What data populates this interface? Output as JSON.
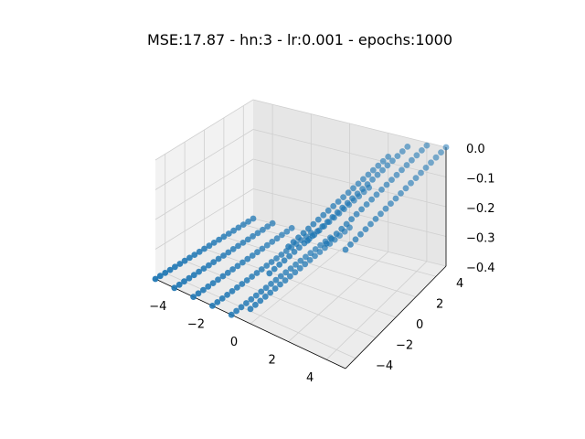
{
  "chart_data": {
    "type": "scatter",
    "projection": "3d",
    "title": "MSE:17.87 - hn:3 - lr:0.001 - epochs:1000",
    "xlabel": "",
    "ylabel": "",
    "zlabel": "",
    "xlim": [
      -5,
      5
    ],
    "ylim": [
      -5,
      5
    ],
    "zlim": [
      -0.4,
      0.0
    ],
    "x_ticks": [
      -4,
      -2,
      0,
      2,
      4
    ],
    "y_ticks": [
      -4,
      -2,
      0,
      2,
      4
    ],
    "z_ticks": [
      0.0,
      -0.1,
      -0.2,
      -0.3,
      -0.4
    ],
    "x_tick_labels": [
      "−4",
      "−2",
      "0",
      "2",
      "4"
    ],
    "y_tick_labels": [
      "−4",
      "−2",
      "0",
      "2",
      "4"
    ],
    "z_tick_labels": [
      "0.0",
      "−0.1",
      "−0.2",
      "−0.3",
      "−0.4"
    ],
    "grid": true,
    "marker_color": "#1f77b4",
    "x_grid": [
      -5,
      -4,
      -3,
      -2,
      -1,
      0,
      1,
      2,
      3,
      4,
      5
    ],
    "y_grid": [
      -5,
      -4.5,
      -4,
      -3.5,
      -3,
      -2.5,
      -2,
      -1.5,
      -1,
      -0.5,
      0,
      0.5,
      1,
      1.5,
      2,
      2.5,
      3,
      3.5,
      4,
      4.5,
      5
    ],
    "z_profile": {
      "x": [
        -5,
        -4,
        -3,
        -2,
        -1,
        0,
        1,
        2,
        3,
        4,
        5
      ],
      "z": [
        -0.4,
        -0.4,
        -0.4,
        -0.4,
        -0.4,
        -0.35,
        -0.2,
        -0.08,
        -0.03,
        -0.01,
        0.0
      ]
    }
  }
}
